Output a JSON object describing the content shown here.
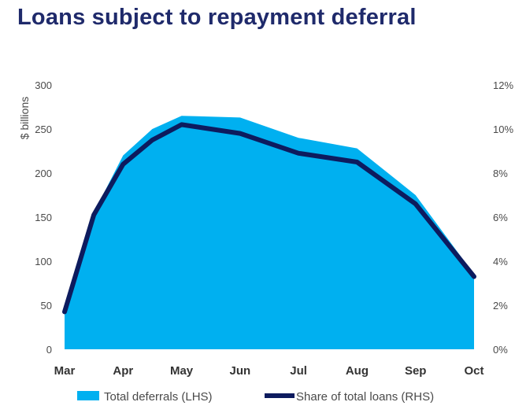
{
  "colors": {
    "area": "#00b0f0",
    "line": "#0d1b5e",
    "title": "#1f2a6b"
  },
  "chart_data": {
    "type": "area",
    "title": "Loans subject to repayment deferral",
    "categories": [
      "Mar",
      "Apr",
      "May",
      "Jun",
      "Jul",
      "Aug",
      "Sep",
      "Oct"
    ],
    "ylabel": "$ billions",
    "ylim": [
      0,
      300
    ],
    "yticks": [
      "0",
      "50",
      "100",
      "150",
      "200",
      "250",
      "300"
    ],
    "y2lim": [
      0,
      12
    ],
    "y2ticks": [
      "0%",
      "2%",
      "4%",
      "6%",
      "8%",
      "10%",
      "12%"
    ],
    "series": [
      {
        "name": "Total deferrals (LHS)",
        "type": "area",
        "axis": "left",
        "x": [
          0,
          0.5,
          1,
          1.5,
          2,
          3,
          4,
          5,
          6,
          7
        ],
        "values": [
          50,
          155,
          220,
          250,
          265,
          263,
          240,
          228,
          175,
          85
        ]
      },
      {
        "name": "Share of total loans (RHS)",
        "type": "line",
        "axis": "right",
        "x": [
          0,
          0.5,
          1,
          1.5,
          2,
          3,
          4,
          5,
          6,
          7
        ],
        "values": [
          1.7,
          6.1,
          8.4,
          9.5,
          10.2,
          9.8,
          8.9,
          8.5,
          6.6,
          3.3
        ]
      }
    ],
    "legend": {
      "position": "bottom"
    }
  }
}
